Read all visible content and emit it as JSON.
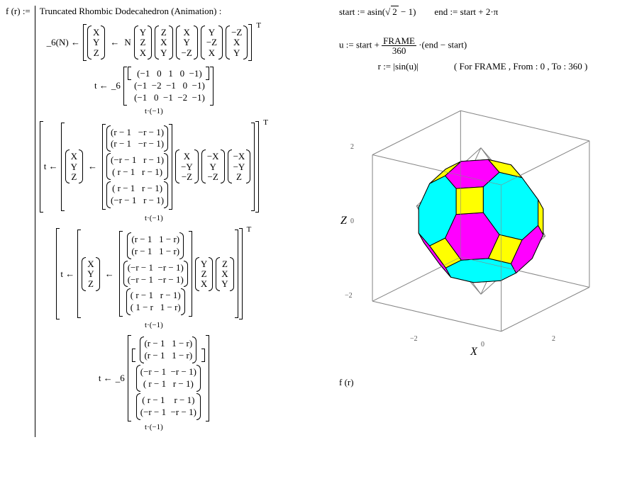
{
  "func_lhs": "f (r) :=",
  "title": "Truncated Rhombic Dodecahedron (Animation) :",
  "six_label": "_6(N) ←",
  "gets": "←",
  "N_label": "N",
  "col_X": "X",
  "col_Y": "Y",
  "col_Z": "Z",
  "perm_cols": [
    [
      "Y",
      "Z",
      "X"
    ],
    [
      "Z",
      "X",
      "Y"
    ],
    [
      "X",
      "Y",
      "−Z"
    ],
    [
      "Y",
      "−Z",
      "X"
    ],
    [
      "−Z",
      "X",
      "Y"
    ]
  ],
  "supT": "T",
  "t_label": "t ←",
  "six_call": "_6",
  "mat_A": " (−1   0   1   0  −1)\n (−1  −2  −1   0  −1)\n (−1   0  −1  −2  −1)",
  "tneg1": "t·(−1)",
  "stack_B": [
    "(r − 1   −r − 1)\n(r − 1   −r − 1)",
    "(−r − 1   r − 1)\n( r − 1   r − 1)",
    "( r − 1   r − 1)\n(−r − 1   r − 1)"
  ],
  "permB_cols": [
    [
      "X",
      "−Y",
      "−Z"
    ],
    [
      "−X",
      "Y",
      "−Z"
    ],
    [
      "−X",
      "−Y",
      "Z"
    ]
  ],
  "stack_C": [
    "(r − 1   1 − r)\n(r − 1   1 − r)",
    "(−r − 1  −r − 1)\n(−r − 1  −r − 1)",
    "( r − 1   r − 1)\n( 1 − r   1 − r)"
  ],
  "permC_cols": [
    [
      "Y",
      "Z",
      "X"
    ],
    [
      "Z",
      "X",
      "Y"
    ]
  ],
  "stack_D": [
    "(r − 1   1 − r)\n(r − 1   1 − r)",
    "(−r − 1  −r − 1)\n( r − 1   r − 1)",
    "( r − 1    r − 1)\n(−r − 1  −r − 1)"
  ],
  "right": {
    "start_lhs": "start :=",
    "start_rhs_pre": "asin(",
    "sqrt_inner": "2",
    "start_rhs_post": " − 1)",
    "end_lhs": "end :=",
    "end_rhs": "start + 2·π",
    "u_lhs": "u :=",
    "u_pre": "start + ",
    "frac_num": "FRAME",
    "frac_den": "360",
    "u_post": "·(end − start)",
    "r_lhs": "r :=",
    "r_rhs": "|sin(u)|",
    "frame_note": "( For FRAME , From : 0 , To : 360 )",
    "f_r": "f (r)"
  },
  "plot": {
    "axis_z": "Z",
    "axis_x": "X",
    "ticks": [
      "−2",
      "0",
      "2"
    ],
    "bg": "#ffffff",
    "frame": "#888888",
    "grid": "#c0c0c0",
    "face_yellow": "#ffff00",
    "face_cyan": "#00ffff",
    "face_magenta": "#ff00ff",
    "edge": "#000000",
    "wire": "#808080"
  }
}
